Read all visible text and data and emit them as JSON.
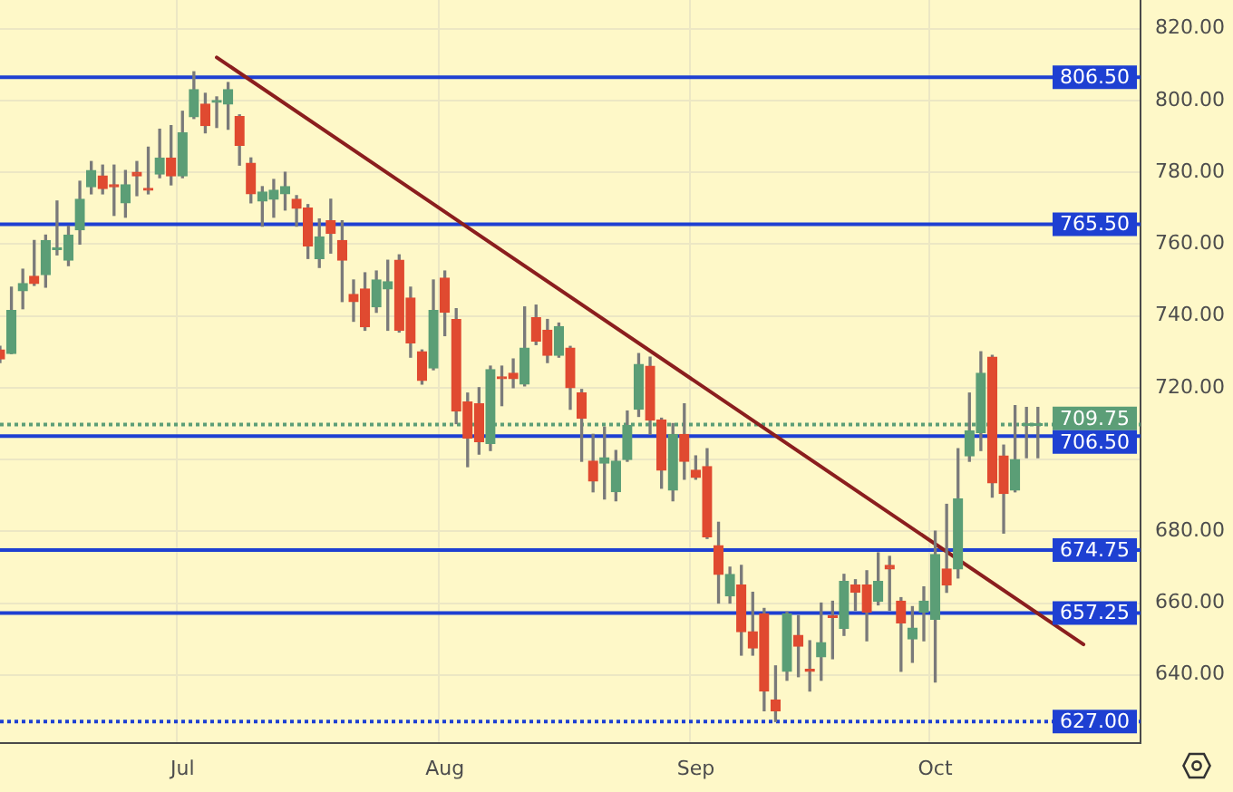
{
  "chart_data": {
    "type": "candlestick",
    "categories": [
      null,
      null,
      null,
      null,
      null,
      null,
      null,
      null,
      null,
      null,
      null,
      null,
      null,
      null,
      null,
      null,
      "Jul",
      null,
      null,
      null,
      null,
      null,
      null,
      null,
      null,
      null,
      null,
      null,
      null,
      null,
      null,
      null,
      null,
      null,
      null,
      null,
      null,
      null,
      null,
      "Aug",
      null,
      null,
      null,
      null,
      null,
      null,
      null,
      null,
      null,
      null,
      null,
      null,
      null,
      null,
      null,
      null,
      null,
      null,
      null,
      null,
      null,
      "Sep",
      null,
      null,
      null,
      null,
      null,
      null,
      null,
      null,
      null,
      null,
      null,
      null,
      null,
      null,
      null,
      null,
      null,
      null,
      null,
      null,
      "Oct",
      null,
      null,
      null,
      null,
      null,
      null,
      null,
      null,
      null,
      null,
      null,
      null,
      null,
      null,
      null,
      null,
      null,
      null
    ],
    "ohlc": [
      [
        730.5,
        731.5,
        727,
        728
      ],
      [
        729.5,
        748,
        729.5,
        741.5
      ],
      [
        747,
        753,
        742,
        749
      ],
      [
        751,
        761,
        748.5,
        749
      ],
      [
        751.5,
        762.5,
        748,
        761
      ],
      [
        758.5,
        772,
        757,
        759
      ],
      [
        755.5,
        765,
        754,
        762.5
      ],
      [
        764,
        777.5,
        760,
        772.5
      ],
      [
        776,
        783,
        774,
        780.5
      ],
      [
        779,
        782,
        774,
        775.5
      ],
      [
        776.5,
        782,
        768,
        776
      ],
      [
        771.5,
        780.5,
        767.5,
        776.5
      ],
      [
        780,
        783,
        773.5,
        779
      ],
      [
        775.5,
        787,
        774,
        775
      ],
      [
        779.5,
        792,
        778.5,
        784
      ],
      [
        784,
        793,
        776.5,
        779
      ],
      [
        779,
        797,
        778.5,
        791
      ],
      [
        795.5,
        808,
        795,
        803
      ],
      [
        799,
        802,
        791,
        793
      ],
      [
        799.5,
        801,
        792.5,
        800
      ],
      [
        799,
        805,
        792,
        803
      ],
      [
        795.5,
        796,
        782,
        787.5
      ],
      [
        782.5,
        784,
        771.5,
        774
      ],
      [
        772,
        776,
        765,
        774.5
      ],
      [
        772.5,
        778,
        767.5,
        775
      ],
      [
        774,
        780,
        769.5,
        776
      ],
      [
        772.5,
        773.5,
        765,
        770
      ],
      [
        770,
        771,
        756,
        759.5
      ],
      [
        756,
        767,
        753.5,
        762
      ],
      [
        766.5,
        772.5,
        757.5,
        763
      ],
      [
        761,
        766.5,
        744,
        755.5
      ],
      [
        746,
        750,
        738.5,
        744
      ],
      [
        747.5,
        752,
        736,
        737
      ],
      [
        742.5,
        752.5,
        741,
        750
      ],
      [
        747.5,
        755.5,
        736,
        749.5
      ],
      [
        755.5,
        757,
        735.5,
        736
      ],
      [
        745,
        748,
        728.5,
        732.5
      ],
      [
        730,
        730.5,
        721,
        722
      ],
      [
        725.5,
        750,
        725,
        741.5
      ],
      [
        750.5,
        752.5,
        734.5,
        741
      ],
      [
        739,
        742,
        710,
        713.5
      ],
      [
        716,
        718.5,
        698,
        706
      ],
      [
        715.5,
        720,
        701.5,
        705
      ],
      [
        704.5,
        726,
        702.5,
        725
      ],
      [
        723,
        726,
        715,
        722.5
      ],
      [
        724,
        728,
        720,
        722.5
      ],
      [
        721,
        742.5,
        720.5,
        731
      ],
      [
        739.5,
        743,
        732,
        733
      ],
      [
        736,
        739,
        727,
        729
      ],
      [
        729,
        738,
        728.5,
        737
      ],
      [
        731,
        731.5,
        714,
        720
      ],
      [
        718.5,
        719.5,
        699.5,
        711.5
      ],
      [
        699.5,
        707,
        691,
        694
      ],
      [
        699,
        709,
        689,
        700.5
      ],
      [
        691,
        702.5,
        688.5,
        699.5
      ],
      [
        700,
        713.5,
        699.5,
        709.5
      ],
      [
        714,
        729.5,
        712,
        726.5
      ],
      [
        726,
        728.5,
        707,
        711
      ],
      [
        711,
        711.5,
        692,
        697
      ],
      [
        691.5,
        710,
        688.5,
        707
      ],
      [
        707,
        715.5,
        694.5,
        699.5
      ],
      [
        697,
        701,
        694.5,
        695
      ],
      [
        698,
        703,
        678,
        678.5
      ],
      [
        676,
        682.5,
        660,
        668
      ],
      [
        662,
        670,
        660,
        668
      ],
      [
        665,
        670.5,
        645.5,
        652
      ],
      [
        652,
        663,
        645.5,
        647.5
      ],
      [
        657,
        658.5,
        630,
        635.5
      ],
      [
        633,
        642.5,
        627,
        630
      ],
      [
        641,
        657.5,
        638.5,
        657
      ],
      [
        651,
        656.5,
        639.5,
        648
      ],
      [
        641.5,
        649.5,
        635.5,
        641
      ],
      [
        645,
        660,
        638.5,
        649
      ],
      [
        656.5,
        660.5,
        644.5,
        656
      ],
      [
        653,
        668,
        651,
        666
      ],
      [
        665,
        666.5,
        658,
        663
      ],
      [
        665,
        669,
        649.5,
        657.5
      ],
      [
        660.5,
        674,
        659.5,
        666
      ],
      [
        670.5,
        673,
        658,
        669.5
      ],
      [
        660.5,
        661.5,
        641,
        654.5
      ],
      [
        650,
        659,
        643.5,
        653
      ],
      [
        657.5,
        664.5,
        649.5,
        660.5
      ],
      [
        655.5,
        680,
        638,
        673.5
      ],
      [
        669.5,
        687.5,
        663,
        665
      ],
      [
        669.5,
        703,
        667,
        689
      ],
      [
        701,
        718.5,
        699.5,
        708
      ],
      [
        707.5,
        730,
        702.5,
        724
      ],
      [
        728.5,
        729,
        689.5,
        693.5
      ],
      [
        701,
        704,
        679.5,
        690.5
      ],
      [
        691.5,
        715,
        691,
        700
      ],
      [
        709.5,
        714.5,
        700.5,
        709.5
      ],
      [
        709.5,
        714.5,
        700.5,
        709.75
      ],
      null,
      null,
      null,
      null,
      null,
      null,
      null,
      null,
      null
    ],
    "colors": [
      "#e04a30",
      "#5b9e76",
      "#5b9e76",
      "#e04a30",
      "#5b9e76",
      "#5b9e76",
      "#5b9e76",
      "#5b9e76",
      "#5b9e76",
      "#e04a30",
      "#e04a30",
      "#5b9e76",
      "#e04a30",
      "#e04a30",
      "#5b9e76",
      "#e04a30",
      "#5b9e76",
      "#5b9e76",
      "#e04a30",
      "#5b9e76",
      "#5b9e76",
      "#e04a30",
      "#e04a30",
      "#5b9e76",
      "#5b9e76",
      "#5b9e76",
      "#e04a30",
      "#e04a30",
      "#5b9e76",
      "#e04a30",
      "#e04a30",
      "#e04a30",
      "#e04a30",
      "#5b9e76",
      "#5b9e76",
      "#e04a30",
      "#e04a30",
      "#e04a30",
      "#5b9e76",
      "#e04a30",
      "#e04a30",
      "#e04a30",
      "#e04a30",
      "#5b9e76",
      "#e04a30",
      "#e04a30",
      "#5b9e76",
      "#e04a30",
      "#e04a30",
      "#5b9e76",
      "#e04a30",
      "#e04a30",
      "#e04a30",
      "#5b9e76",
      "#5b9e76",
      "#5b9e76",
      "#5b9e76",
      "#e04a30",
      "#e04a30",
      "#5b9e76",
      "#e04a30",
      "#e04a30",
      "#e04a30",
      "#e04a30",
      "#5b9e76",
      "#e04a30",
      "#e04a30",
      "#e04a30",
      "#e04a30",
      "#5b9e76",
      "#e04a30",
      "#e04a30",
      "#5b9e76",
      "#e04a30",
      "#5b9e76",
      "#e04a30",
      "#e04a30",
      "#5b9e76",
      "#e04a30",
      "#e04a30",
      "#5b9e76",
      "#5b9e76",
      "#5b9e76",
      "#e04a30",
      "#5b9e76",
      "#5b9e76",
      "#5b9e76",
      "#e04a30",
      "#e04a30",
      "#5b9e76",
      "#5b9e76",
      "#5b9e76",
      null,
      null,
      null,
      null,
      null,
      null,
      null,
      null,
      null
    ],
    "series": [
      {
        "type": "line",
        "color": "#8b1e1e",
        "values": [
          null,
          null,
          null,
          null,
          null,
          null,
          null,
          null,
          null,
          null,
          null,
          null,
          null,
          null,
          null,
          null,
          null,
          null,
          null,
          812,
          null,
          null,
          null,
          null,
          null,
          null,
          null,
          null,
          null,
          null,
          null,
          null,
          null,
          null,
          null,
          null,
          null,
          null,
          null,
          null,
          null,
          null,
          null,
          null,
          null,
          null,
          null,
          null,
          null,
          null,
          null,
          null,
          null,
          null,
          null,
          null,
          null,
          null,
          null,
          null,
          null,
          null,
          null,
          null,
          null,
          null,
          null,
          null,
          null,
          null,
          null,
          null,
          null,
          null,
          null,
          null,
          null,
          null,
          null,
          null,
          null,
          null,
          null,
          null,
          null,
          null,
          null,
          null,
          null,
          null,
          null,
          null,
          null,
          null,
          null,
          648.5,
          null,
          null,
          null,
          null,
          null
        ]
      }
    ],
    "ylim": [
      621,
      828
    ],
    "yticks": [
      {
        "value": 640,
        "label": "640.00"
      },
      {
        "value": 660,
        "label": "660.00"
      },
      {
        "value": 680,
        "label": "680.00"
      },
      {
        "value": 700,
        "label": null
      },
      {
        "value": 720,
        "label": "720.00"
      },
      {
        "value": 740,
        "label": "740.00"
      },
      {
        "value": 760,
        "label": "760.00"
      },
      {
        "value": 780,
        "label": "780.00"
      },
      {
        "value": 800,
        "label": "800.00"
      },
      {
        "value": 820,
        "label": "820.00"
      }
    ],
    "ref_lines": [
      {
        "axis": "y",
        "value": 806.5,
        "label": "806.50",
        "color": "#1e40d2"
      },
      {
        "axis": "y",
        "value": 765.5,
        "label": "765.50",
        "color": "#1e40d2"
      },
      {
        "axis": "y",
        "value": 709.75,
        "label": "709.75",
        "color": "#5c9e77",
        "line_style": "dotted"
      },
      {
        "axis": "y",
        "value": 706.5,
        "label": "706.50",
        "color": "#1e40d2"
      },
      {
        "axis": "y",
        "value": 674.75,
        "label": "674.75",
        "color": "#1e40d2"
      },
      {
        "axis": "y",
        "value": 657.25,
        "label": "657.25",
        "color": "#1e40d2"
      },
      {
        "axis": "y",
        "value": 627,
        "label": "627.00",
        "color": "#1e40d2",
        "line_style": "dotted"
      }
    ],
    "grid": true
  }
}
